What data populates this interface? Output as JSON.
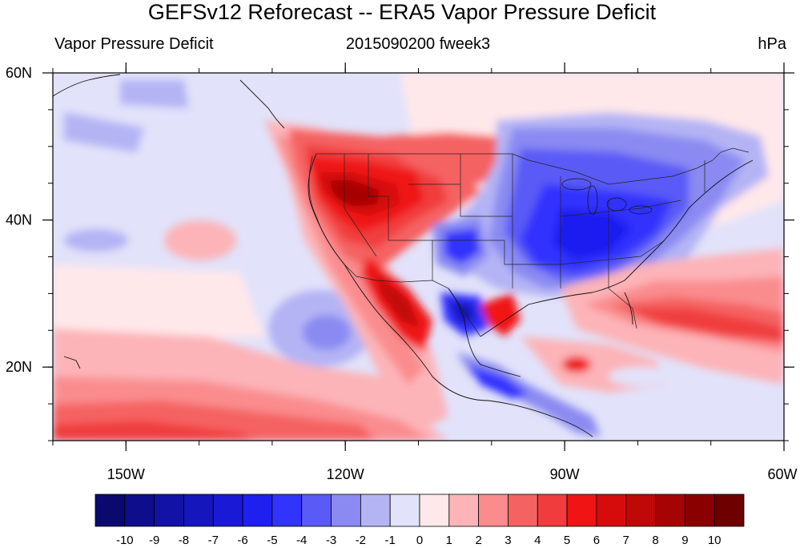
{
  "title": "GEFSv12 Reforecast -- ERA5 Vapor Pressure Deficit",
  "subtitle_left": "Vapor Pressure Deficit",
  "subtitle_center": "2015090200 fweek3",
  "subtitle_right": "hPa",
  "map": {
    "lon_range": [
      -160,
      -60
    ],
    "lat_range": [
      10,
      60
    ],
    "lon_ticks": [
      {
        "value": -150,
        "label": "150W"
      },
      {
        "value": -120,
        "label": "120W"
      },
      {
        "value": -90,
        "label": "90W"
      },
      {
        "value": -60,
        "label": "60W"
      }
    ],
    "lat_ticks": [
      {
        "value": 60,
        "label": "60N"
      },
      {
        "value": 40,
        "label": "40N"
      },
      {
        "value": 20,
        "label": "20N"
      }
    ]
  },
  "colorbar": {
    "colors": [
      "#0a0a6e",
      "#0e0e8c",
      "#1212a6",
      "#1616bd",
      "#1a1ad6",
      "#1f1ff0",
      "#3333ff",
      "#5a5af7",
      "#8a8af2",
      "#b4b4f5",
      "#e2e2fa",
      "#ffe8ea",
      "#fcb4b8",
      "#fa8c8e",
      "#f56262",
      "#f03c3c",
      "#f01414",
      "#d60c0c",
      "#c00808",
      "#a60404",
      "#8a0000",
      "#6e0000"
    ],
    "labels": [
      "-10",
      "-9",
      "-8",
      "-7",
      "-6",
      "-5",
      "-4",
      "-3",
      "-2",
      "-1",
      "0",
      "1",
      "2",
      "3",
      "4",
      "5",
      "6",
      "7",
      "8",
      "9",
      "10"
    ]
  },
  "colors": {
    "background_field": "#e2e2fa"
  }
}
